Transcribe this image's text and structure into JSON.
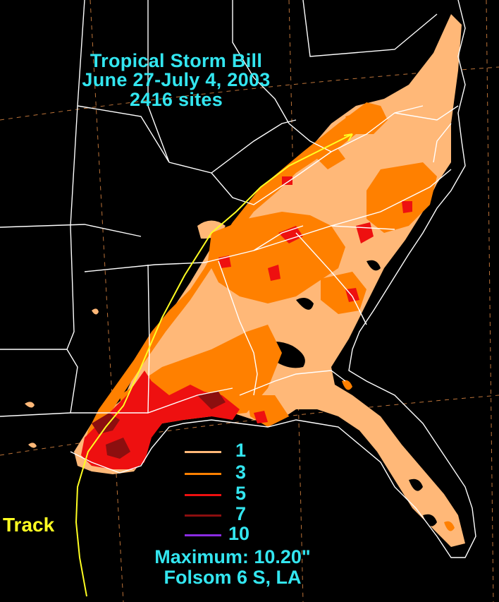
{
  "title": {
    "line1": "Tropical Storm Bill",
    "line2": "June 27-July 4, 2003",
    "line3": "2416 sites"
  },
  "legend": [
    {
      "label": "1",
      "color": "#ffb878"
    },
    {
      "label": "3",
      "color": "#ff8000"
    },
    {
      "label": "5",
      "color": "#ee1010"
    },
    {
      "label": "7",
      "color": "#8c0f0f"
    },
    {
      "label": "10",
      "color": "#8a2be2"
    }
  ],
  "track_label": "Track",
  "maximum": {
    "line1": "Maximum: 10.20\"",
    "line2": "Folsom 6 S, LA"
  },
  "colors": {
    "background": "#000000",
    "borders": "#ffffff",
    "track": "#ffff22",
    "text": "#33e6f0",
    "gridlines": "#d08040"
  }
}
